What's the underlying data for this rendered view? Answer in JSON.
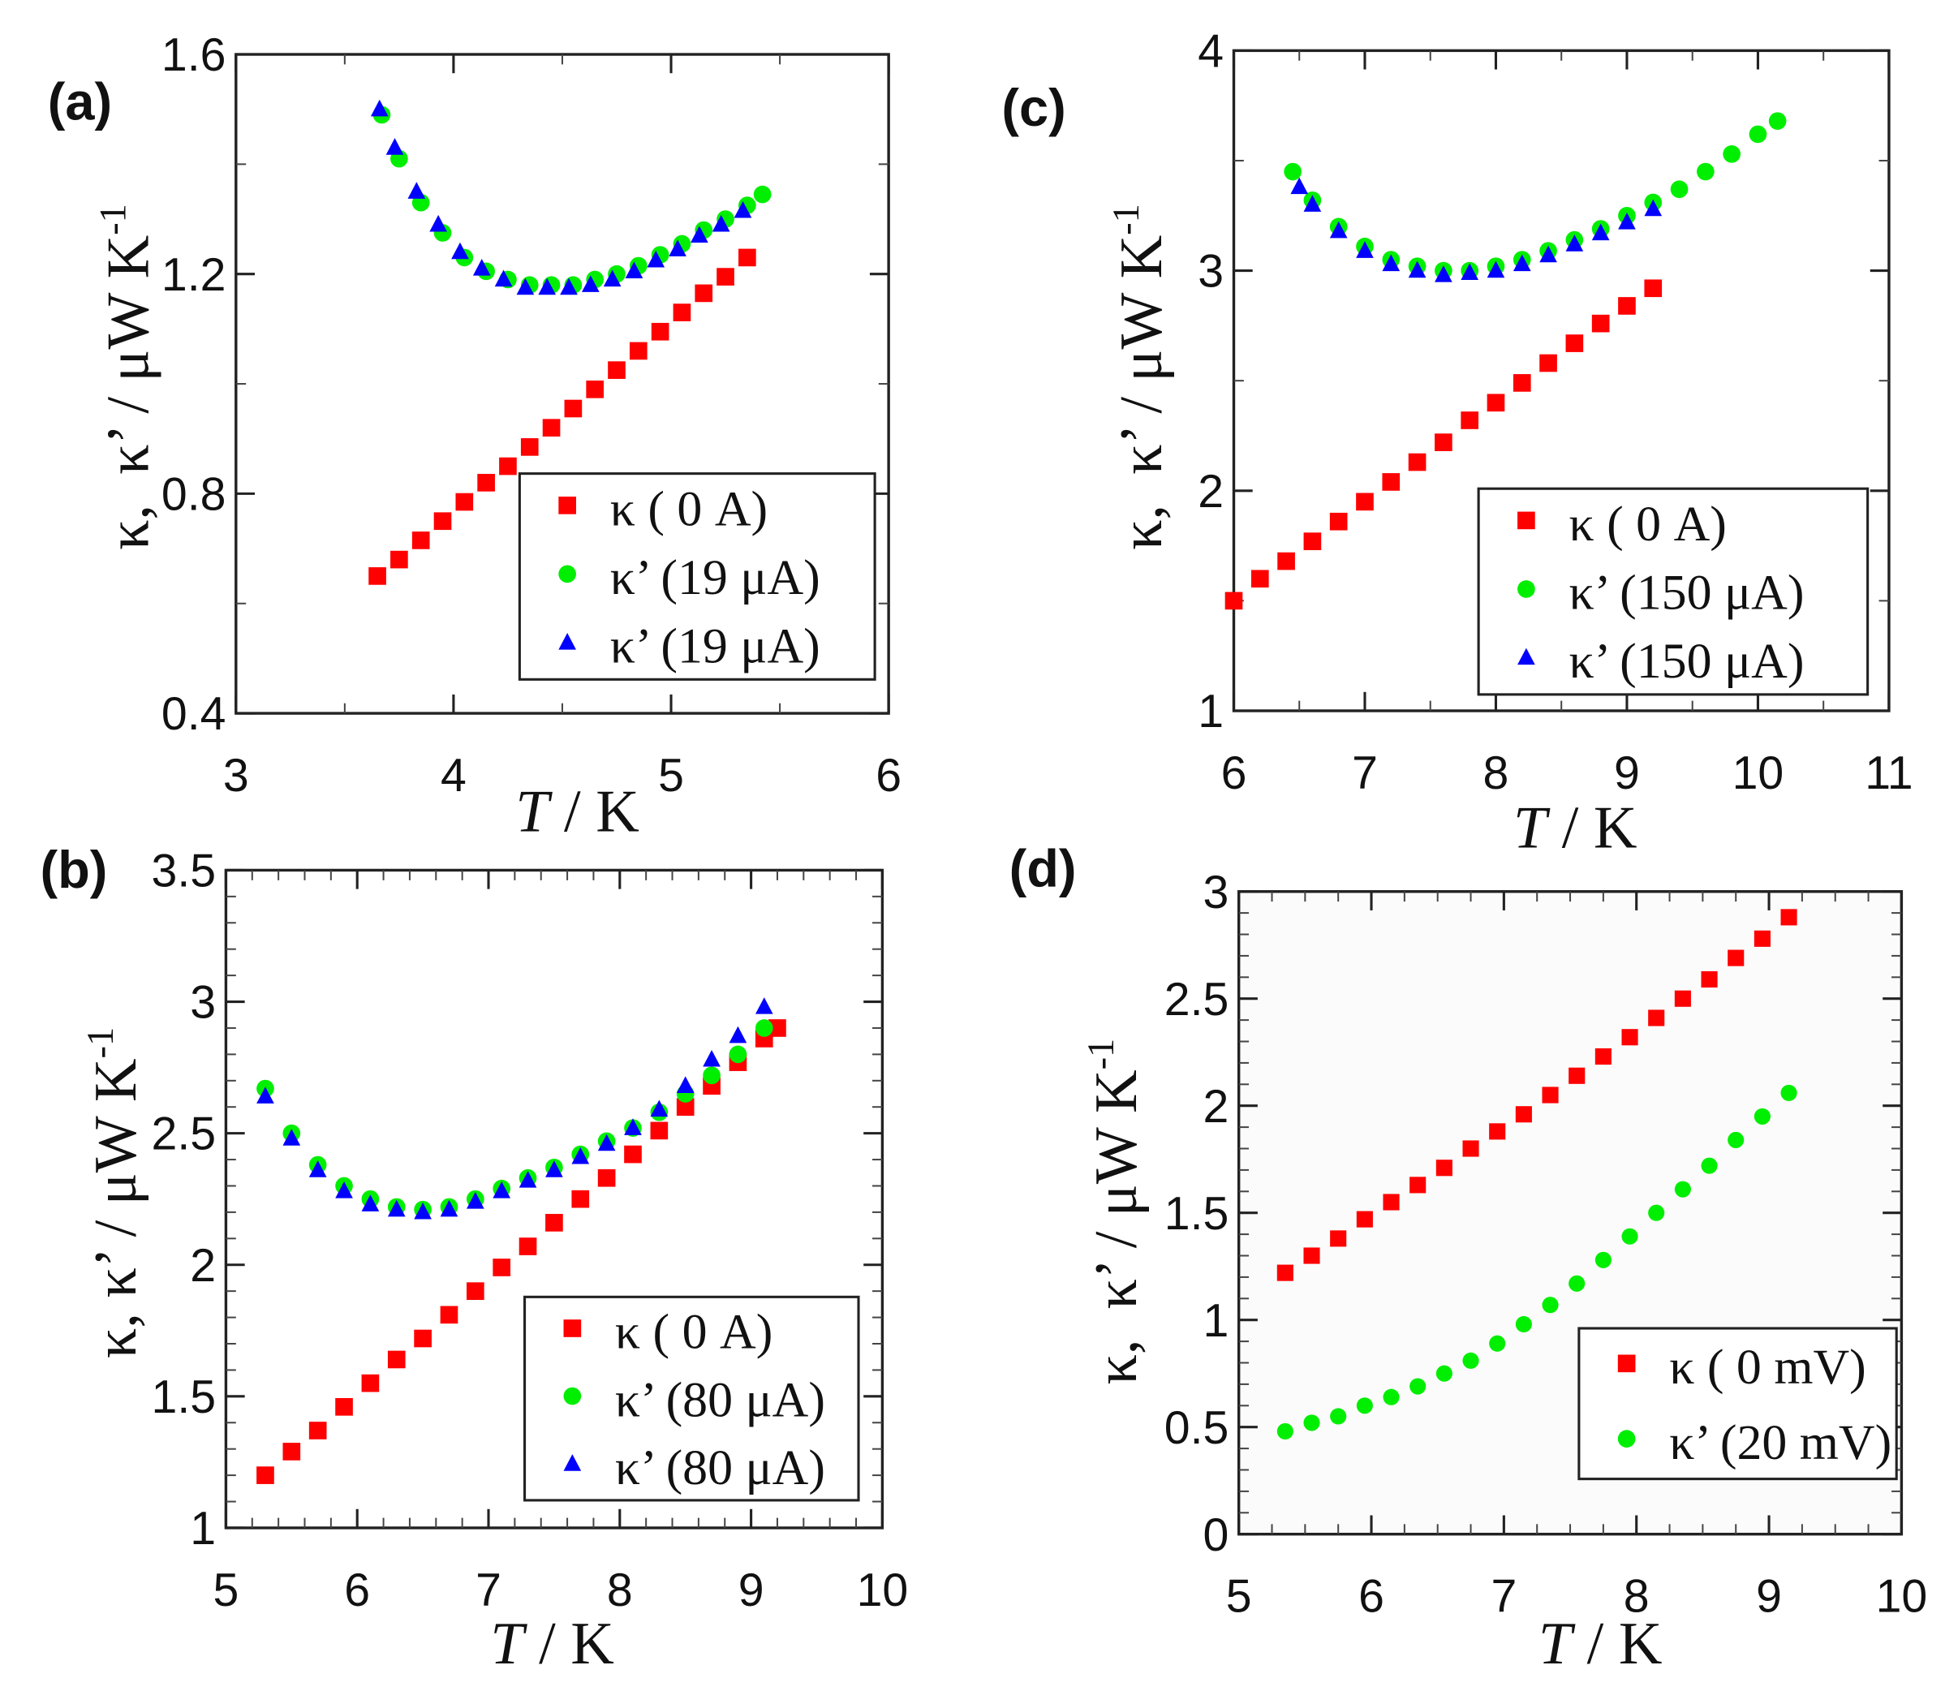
{
  "chart_data": [
    {
      "panel": "(a)",
      "type": "scatter",
      "xlabel_italic": "T",
      "xlabel_rest": " / K",
      "ylabel": "κ,  κ’ / μW K",
      "ylabel_sup": "-1",
      "xlim": [
        3,
        6
      ],
      "ylim": [
        0.4,
        1.6
      ],
      "xticks": [
        3,
        4,
        5,
        6
      ],
      "xtick_labels": [
        "3",
        "4",
        "5",
        "6"
      ],
      "xminor": 0.5,
      "yticks": [
        0.4,
        0.8,
        1.2,
        1.6
      ],
      "ytick_labels": [
        "0.4",
        "0.8",
        "1.2",
        "1.6"
      ],
      "yminor": 0.2,
      "legend_position": "bottom-right",
      "series": [
        {
          "name": "κ ( 0 A)",
          "marker": "square",
          "color": "#ff0000",
          "x": [
            3.65,
            3.75,
            3.85,
            3.95,
            4.05,
            4.15,
            4.25,
            4.35,
            4.45,
            4.55,
            4.65,
            4.75,
            4.85,
            4.95,
            5.05,
            5.15,
            5.25,
            5.35
          ],
          "y": [
            0.65,
            0.68,
            0.715,
            0.75,
            0.785,
            0.82,
            0.85,
            0.885,
            0.92,
            0.955,
            0.99,
            1.025,
            1.06,
            1.095,
            1.13,
            1.165,
            1.195,
            1.23
          ]
        },
        {
          "name": "κ’ (19 μA)",
          "marker": "circle",
          "color": "#00ee00",
          "x": [
            3.67,
            3.75,
            3.85,
            3.95,
            4.05,
            4.15,
            4.25,
            4.35,
            4.45,
            4.55,
            4.65,
            4.75,
            4.85,
            4.95,
            5.05,
            5.15,
            5.25,
            5.35,
            5.42
          ],
          "y": [
            1.49,
            1.41,
            1.33,
            1.275,
            1.23,
            1.205,
            1.19,
            1.18,
            1.18,
            1.18,
            1.19,
            1.2,
            1.215,
            1.235,
            1.255,
            1.28,
            1.3,
            1.325,
            1.345
          ]
        },
        {
          "name": "κ’ (19 μA)",
          "marker": "triangle",
          "color": "#0000ff",
          "x": [
            3.66,
            3.73,
            3.83,
            3.93,
            4.03,
            4.13,
            4.23,
            4.33,
            4.43,
            4.53,
            4.63,
            4.73,
            4.83,
            4.93,
            5.03,
            5.13,
            5.23,
            5.33
          ],
          "y": [
            1.5,
            1.43,
            1.35,
            1.29,
            1.24,
            1.21,
            1.19,
            1.175,
            1.175,
            1.175,
            1.18,
            1.19,
            1.205,
            1.225,
            1.245,
            1.27,
            1.29,
            1.315
          ]
        }
      ]
    },
    {
      "panel": "(b)",
      "type": "scatter",
      "xlabel_italic": "T",
      "xlabel_rest": " / K",
      "ylabel": "κ, κ’ / μW K",
      "ylabel_sup": "-1",
      "xlim": [
        5,
        10
      ],
      "ylim": [
        1,
        3.5
      ],
      "xticks": [
        5,
        6,
        7,
        8,
        9,
        10
      ],
      "xtick_labels": [
        "5",
        "6",
        "7",
        "8",
        "9",
        "10"
      ],
      "xminor": 0.2,
      "yticks": [
        1,
        1.5,
        2,
        2.5,
        3,
        3.5
      ],
      "ytick_labels": [
        "1",
        "1.5",
        "2",
        "2.5",
        "3",
        "3.5"
      ],
      "yminor": 0.1,
      "legend_position": "bottom-right",
      "series": [
        {
          "name": "κ ( 0 A)",
          "marker": "square",
          "color": "#ff0000",
          "x": [
            5.3,
            5.5,
            5.7,
            5.9,
            6.1,
            6.3,
            6.5,
            6.7,
            6.9,
            7.1,
            7.3,
            7.5,
            7.7,
            7.9,
            8.1,
            8.3,
            8.5,
            8.7,
            8.9,
            9.1,
            9.2
          ],
          "y": [
            1.2,
            1.29,
            1.37,
            1.46,
            1.55,
            1.64,
            1.72,
            1.81,
            1.9,
            1.99,
            2.07,
            2.16,
            2.25,
            2.33,
            2.42,
            2.51,
            2.6,
            2.68,
            2.77,
            2.86,
            2.9
          ]
        },
        {
          "name": "κ’ (80 μA)",
          "marker": "circle",
          "color": "#00ee00",
          "x": [
            5.3,
            5.5,
            5.7,
            5.9,
            6.1,
            6.3,
            6.5,
            6.7,
            6.9,
            7.1,
            7.3,
            7.5,
            7.7,
            7.9,
            8.1,
            8.3,
            8.5,
            8.7,
            8.9,
            9.1
          ],
          "y": [
            2.67,
            2.5,
            2.38,
            2.3,
            2.25,
            2.22,
            2.21,
            2.22,
            2.25,
            2.29,
            2.33,
            2.37,
            2.42,
            2.47,
            2.52,
            2.58,
            2.65,
            2.72,
            2.8,
            2.9
          ]
        },
        {
          "name": "κ’ (80 μA)",
          "marker": "triangle",
          "color": "#0000ff",
          "x": [
            5.3,
            5.5,
            5.7,
            5.9,
            6.1,
            6.3,
            6.5,
            6.7,
            6.9,
            7.1,
            7.3,
            7.5,
            7.7,
            7.9,
            8.1,
            8.3,
            8.5,
            8.7,
            8.9,
            9.1
          ],
          "y": [
            2.64,
            2.48,
            2.36,
            2.28,
            2.23,
            2.21,
            2.2,
            2.21,
            2.24,
            2.28,
            2.32,
            2.36,
            2.41,
            2.46,
            2.52,
            2.59,
            2.68,
            2.78,
            2.87,
            2.98
          ]
        }
      ]
    },
    {
      "panel": "(c)",
      "type": "scatter",
      "xlabel_italic": "T",
      "xlabel_rest": " / K",
      "ylabel": "κ,  κ’ / μW K",
      "ylabel_sup": "-1",
      "xlim": [
        6,
        11
      ],
      "ylim": [
        1,
        4
      ],
      "xticks": [
        6,
        7,
        8,
        9,
        10,
        11
      ],
      "xtick_labels": [
        "6",
        "7",
        "8",
        "9",
        "10",
        "11"
      ],
      "xminor": 0.5,
      "yticks": [
        1,
        2,
        3,
        4
      ],
      "ytick_labels": [
        "1",
        "2",
        "3",
        "4"
      ],
      "yminor": 0.5,
      "legend_position": "bottom-right",
      "series": [
        {
          "name": "κ ( 0 A)",
          "marker": "square",
          "color": "#ff0000",
          "x": [
            6,
            6.2,
            6.4,
            6.6,
            6.8,
            7,
            7.2,
            7.4,
            7.6,
            7.8,
            8,
            8.2,
            8.4,
            8.6,
            8.8,
            9,
            9.2
          ],
          "y": [
            1.5,
            1.6,
            1.68,
            1.77,
            1.86,
            1.95,
            2.04,
            2.13,
            2.22,
            2.32,
            2.4,
            2.49,
            2.58,
            2.67,
            2.76,
            2.84,
            2.92
          ]
        },
        {
          "name": "κ’ (150 μA)",
          "marker": "circle",
          "color": "#00ee00",
          "x": [
            6.45,
            6.6,
            6.8,
            7,
            7.2,
            7.4,
            7.6,
            7.8,
            8,
            8.2,
            8.4,
            8.6,
            8.8,
            9,
            9.2,
            9.4,
            9.6,
            9.8,
            10,
            10.15
          ],
          "y": [
            3.45,
            3.32,
            3.2,
            3.11,
            3.05,
            3.02,
            3.0,
            3.0,
            3.02,
            3.05,
            3.09,
            3.14,
            3.19,
            3.25,
            3.31,
            3.37,
            3.45,
            3.53,
            3.62,
            3.68
          ]
        },
        {
          "name": "κ’ (150 μA)",
          "marker": "triangle",
          "color": "#0000ff",
          "x": [
            6.5,
            6.6,
            6.8,
            7,
            7.2,
            7.4,
            7.6,
            7.8,
            8,
            8.2,
            8.4,
            8.6,
            8.8,
            9,
            9.2
          ],
          "y": [
            3.38,
            3.3,
            3.18,
            3.09,
            3.03,
            3.0,
            2.98,
            2.99,
            3.0,
            3.03,
            3.07,
            3.12,
            3.17,
            3.22,
            3.28
          ]
        }
      ]
    },
    {
      "panel": "(d)",
      "type": "scatter",
      "xlabel_italic": "T",
      "xlabel_rest": " / K",
      "ylabel": "κ,  κ’ / μW K",
      "ylabel_sup": "-1",
      "xlim": [
        5,
        10
      ],
      "ylim": [
        0,
        3
      ],
      "xticks": [
        5,
        6,
        7,
        8,
        9,
        10
      ],
      "xtick_labels": [
        "5",
        "6",
        "7",
        "8",
        "9",
        "10"
      ],
      "xminor": 0.25,
      "yticks": [
        0,
        0.5,
        1,
        1.5,
        2,
        2.5,
        3
      ],
      "ytick_labels": [
        "0",
        "0.5",
        "1",
        "1.5",
        "2",
        "2.5",
        "3"
      ],
      "yminor": 0.1,
      "legend_position": "bottom-right",
      "series": [
        {
          "name": "κ ( 0 mV)",
          "marker": "square",
          "color": "#ff0000",
          "x": [
            5.35,
            5.55,
            5.75,
            5.95,
            6.15,
            6.35,
            6.55,
            6.75,
            6.95,
            7.15,
            7.35,
            7.55,
            7.75,
            7.95,
            8.15,
            8.35,
            8.55,
            8.75,
            8.95,
            9.15
          ],
          "y": [
            1.22,
            1.3,
            1.38,
            1.47,
            1.55,
            1.63,
            1.71,
            1.8,
            1.88,
            1.96,
            2.05,
            2.14,
            2.23,
            2.32,
            2.41,
            2.5,
            2.59,
            2.69,
            2.78,
            2.88
          ]
        },
        {
          "name": "κ’ (20 mV)",
          "marker": "circle",
          "color": "#00ee00",
          "x": [
            5.35,
            5.55,
            5.75,
            5.95,
            6.15,
            6.35,
            6.55,
            6.75,
            6.95,
            7.15,
            7.35,
            7.55,
            7.75,
            7.95,
            8.15,
            8.35,
            8.55,
            8.75,
            8.95,
            9.15
          ],
          "y": [
            0.48,
            0.52,
            0.55,
            0.6,
            0.64,
            0.69,
            0.75,
            0.81,
            0.89,
            0.98,
            1.07,
            1.17,
            1.28,
            1.39,
            1.5,
            1.61,
            1.72,
            1.84,
            1.95,
            2.06
          ]
        }
      ]
    }
  ]
}
